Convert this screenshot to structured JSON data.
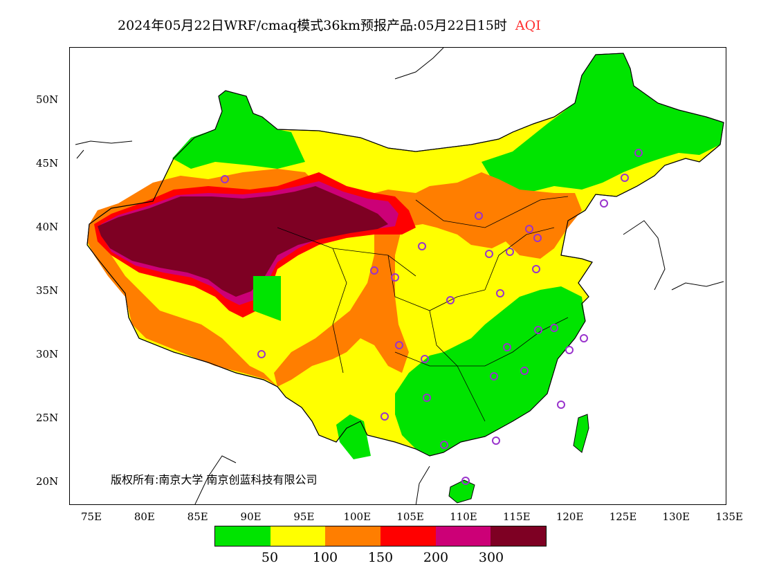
{
  "title": {
    "text": "2024年05月22日WRF/cmaq模式36km预报产品:05月22日15时",
    "highlight": "AQI",
    "highlight_color": "#ff3030"
  },
  "copyright": "版权所有:南京大学 南京创蓝科技有限公司",
  "axes": {
    "longitudes": [
      "75E",
      "80E",
      "85E",
      "90E",
      "95E",
      "100E",
      "105E",
      "110E",
      "115E",
      "120E",
      "125E",
      "130E",
      "135E"
    ],
    "latitudes": [
      "50N",
      "45N",
      "40N",
      "35N",
      "30N",
      "25N",
      "20N"
    ]
  },
  "legend": {
    "colors": [
      "#00e400",
      "#ffff00",
      "#ff7e00",
      "#ff0000",
      "#cc0077",
      "#7e0023"
    ],
    "labels": [
      "50",
      "100",
      "150",
      "200",
      "300"
    ]
  },
  "map": {
    "background_color": "#ffffff",
    "outline_color": "#000000",
    "city_marker_color": "#9933cc"
  }
}
